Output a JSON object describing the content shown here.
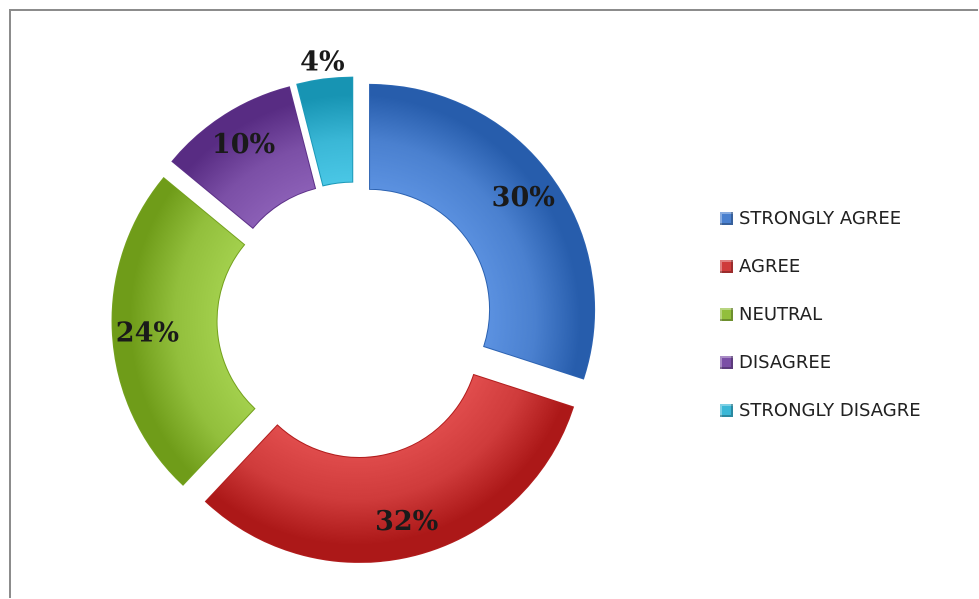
{
  "chart_data": {
    "type": "pie",
    "subtype": "exploded-donut",
    "title": "",
    "categories": [
      "STRONGLY AGREE",
      "AGREE",
      "NEUTRAL",
      "DISAGREE",
      "STRONGLY DISAGRE"
    ],
    "values": [
      30,
      32,
      24,
      10,
      4
    ],
    "data_labels": [
      "30%",
      "32%",
      "24%",
      "10%",
      "4%"
    ],
    "colors": [
      "#4a80cf",
      "#cf3b3b",
      "#92bf3c",
      "#7b4fa6",
      "#3ab7d6"
    ],
    "legend_position": "right"
  }
}
